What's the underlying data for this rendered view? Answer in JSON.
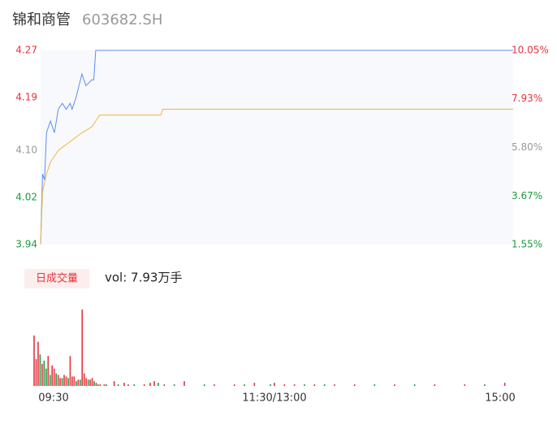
{
  "header": {
    "title": "锦和商管",
    "code": "603682.SH"
  },
  "chart_data": [
    {
      "type": "line",
      "xlim": [
        0,
        240
      ],
      "ylim": [
        3.94,
        4.27
      ],
      "y2lim": [
        1.55,
        10.05
      ],
      "yticks": [
        4.27,
        4.19,
        {
          "value": 4.1,
          "label": "4.10"
        },
        4.02,
        3.94
      ],
      "y2ticks": [
        {
          "value": 10.05,
          "label": "10.05%"
        },
        {
          "value": 7.93,
          "label": "7.93%"
        },
        {
          "value": 5.8,
          "label": "5.80%"
        },
        {
          "value": 3.67,
          "label": "3.67%"
        },
        {
          "value": 1.55,
          "label": "1.55%"
        }
      ],
      "tick_colors": [
        "#e8323c",
        "#e8323c",
        "#999999",
        "#1a9b3c",
        "#1a9b3c"
      ],
      "series": [
        {
          "color": "#5b8ff0",
          "x": [
            0,
            1,
            2,
            3,
            5,
            7,
            9,
            11,
            13,
            15,
            16,
            18,
            21,
            23,
            26,
            27,
            28,
            240
          ],
          "values": [
            3.94,
            4.06,
            4.05,
            4.13,
            4.15,
            4.13,
            4.17,
            4.18,
            4.17,
            4.18,
            4.17,
            4.19,
            4.23,
            4.21,
            4.22,
            4.22,
            4.27,
            4.27
          ]
        },
        {
          "color": "#f0b43c",
          "x": [
            0,
            1,
            3,
            5,
            7,
            9,
            13,
            17,
            21,
            26,
            28,
            30,
            61,
            62,
            240
          ],
          "values": [
            3.94,
            4.03,
            4.06,
            4.08,
            4.09,
            4.1,
            4.11,
            4.12,
            4.13,
            4.14,
            4.15,
            4.16,
            4.16,
            4.17,
            4.17
          ]
        }
      ]
    },
    {
      "type": "bar",
      "button": "日成交量",
      "volume_label": "vol: 7.93万手",
      "xlim": [
        0,
        240
      ],
      "xticks": [
        {
          "value": 0,
          "label": "09:30"
        },
        {
          "value": 120,
          "label": "11:30/13:00"
        },
        {
          "value": 240,
          "label": "15:00"
        }
      ],
      "ylim": [
        0,
        100
      ],
      "series": [
        {
          "color": "#e8323c",
          "x": [
            0,
            1,
            2,
            4,
            7,
            9,
            10,
            12,
            13,
            15,
            16,
            18,
            19,
            20,
            22,
            24,
            25,
            26,
            28,
            29,
            31,
            33,
            35,
            40,
            45,
            47,
            55,
            58,
            60,
            65,
            75,
            90,
            100,
            110,
            120,
            125,
            130,
            140,
            150,
            160,
            180,
            200,
            215,
            235
          ],
          "values": [
            64,
            34,
            56,
            28,
            38,
            26,
            22,
            14,
            10,
            14,
            12,
            38,
            12,
            12,
            8,
            97,
            16,
            10,
            8,
            10,
            4,
            2,
            2,
            6,
            4,
            2,
            2,
            4,
            6,
            2,
            6,
            2,
            2,
            4,
            4,
            2,
            2,
            2,
            2,
            2,
            2,
            2,
            2,
            4
          ]
        },
        {
          "color": "#1a9b3c",
          "x": [
            3,
            5,
            6,
            8,
            11,
            14,
            17,
            21,
            23,
            27,
            30,
            32,
            36,
            42,
            50,
            62,
            70,
            85,
            105,
            118,
            135,
            145,
            170,
            190,
            225
          ],
          "values": [
            40,
            32,
            22,
            14,
            16,
            10,
            10,
            6,
            8,
            8,
            6,
            2,
            2,
            2,
            2,
            4,
            2,
            2,
            2,
            2,
            2,
            2,
            2,
            2,
            2
          ]
        }
      ]
    }
  ]
}
